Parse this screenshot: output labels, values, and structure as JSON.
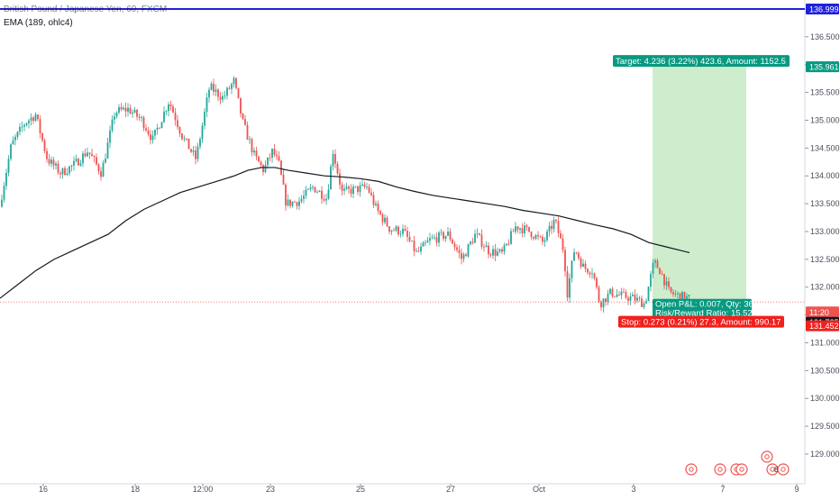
{
  "legend": {
    "symbol_title": "British Pound / Japanese Yen, 60, FXCM",
    "ema_label": "EMA (189, ohlc4)"
  },
  "colors": {
    "up": "#26a69a",
    "down": "#ef5350",
    "ema": "#131722",
    "hline": "#1e22d8",
    "target_zone": "#c8ebc8",
    "target_label": "#089981",
    "stop_label": "#f0201c",
    "axis_text": "#4a4f5c",
    "grid": "#f0f3fa"
  },
  "chart_data": {
    "type": "candlestick",
    "title": "British Pound / Japanese Yen, 60, FXCM",
    "y_axis": {
      "ticks": [
        "136.500",
        "136.000",
        "135.500",
        "135.000",
        "134.500",
        "134.000",
        "133.500",
        "133.000",
        "132.500",
        "132.000",
        "131.500",
        "131.000",
        "130.500",
        "130.000",
        "129.500",
        "129.000"
      ],
      "ylim": [
        128.55,
        137.05
      ]
    },
    "x_axis": {
      "ticks": [
        "16",
        "18",
        "12:00",
        "23",
        "25",
        "27",
        "Oct",
        "3",
        "7",
        "9"
      ]
    },
    "horizontal_line": {
      "price": 136.999,
      "label": "136.999"
    },
    "current_price_line": {
      "price": 131.732,
      "label": "131.732"
    },
    "price_labels": [
      {
        "id": "target",
        "price": 135.961,
        "label": "135.961",
        "kind": "target"
      },
      {
        "id": "timer",
        "price": 131.732,
        "label": "11:20",
        "kind": "timer"
      },
      {
        "id": "last",
        "price": 131.725,
        "label": "131.725",
        "kind": "last"
      },
      {
        "id": "stop",
        "price": 131.452,
        "label": "131.452",
        "kind": "stop"
      }
    ],
    "ema": {
      "name": "EMA (189, ohlc4)",
      "points": [
        [
          0,
          131.8
        ],
        [
          20,
          132.05
        ],
        [
          40,
          132.3
        ],
        [
          60,
          132.5
        ],
        [
          80,
          132.65
        ],
        [
          100,
          132.8
        ],
        [
          120,
          132.95
        ],
        [
          140,
          133.2
        ],
        [
          160,
          133.4
        ],
        [
          180,
          133.55
        ],
        [
          200,
          133.7
        ],
        [
          220,
          133.8
        ],
        [
          240,
          133.9
        ],
        [
          260,
          134.0
        ],
        [
          275,
          134.1
        ],
        [
          290,
          134.15
        ],
        [
          305,
          134.15
        ],
        [
          320,
          134.1
        ],
        [
          340,
          134.05
        ],
        [
          360,
          134.0
        ],
        [
          380,
          133.98
        ],
        [
          400,
          133.95
        ],
        [
          420,
          133.9
        ],
        [
          440,
          133.8
        ],
        [
          460,
          133.72
        ],
        [
          480,
          133.65
        ],
        [
          500,
          133.6
        ],
        [
          520,
          133.55
        ],
        [
          540,
          133.5
        ],
        [
          560,
          133.45
        ],
        [
          580,
          133.38
        ],
        [
          600,
          133.33
        ],
        [
          620,
          133.28
        ],
        [
          640,
          133.2
        ],
        [
          660,
          133.12
        ],
        [
          680,
          133.05
        ],
        [
          700,
          132.95
        ],
        [
          720,
          132.8
        ],
        [
          740,
          132.72
        ],
        [
          765,
          132.62
        ]
      ]
    },
    "position": {
      "type": "long",
      "target_text": "Target: 4.236 (3.22%) 423.6, Amount: 1152.5",
      "stop_text": "Stop: 0.273 (0.21%) 27.3, Amount: 990.17",
      "pnl_text": "Open P&L: 0.007, Qty: 36",
      "rr_text": "Risk/Reward Ratio: 15.52",
      "entry": 131.725,
      "target": 135.961,
      "stop": 131.452
    },
    "events": [
      {
        "label": "",
        "slot": 0
      },
      {
        "label": "",
        "slot": 1
      },
      {
        "label": "2",
        "slot": 2
      },
      {
        "label": "",
        "slot": 3
      },
      {
        "label": "",
        "slot": 4
      },
      {
        "label": "8",
        "slot": 5
      },
      {
        "label": "",
        "slot": 6
      }
    ]
  }
}
